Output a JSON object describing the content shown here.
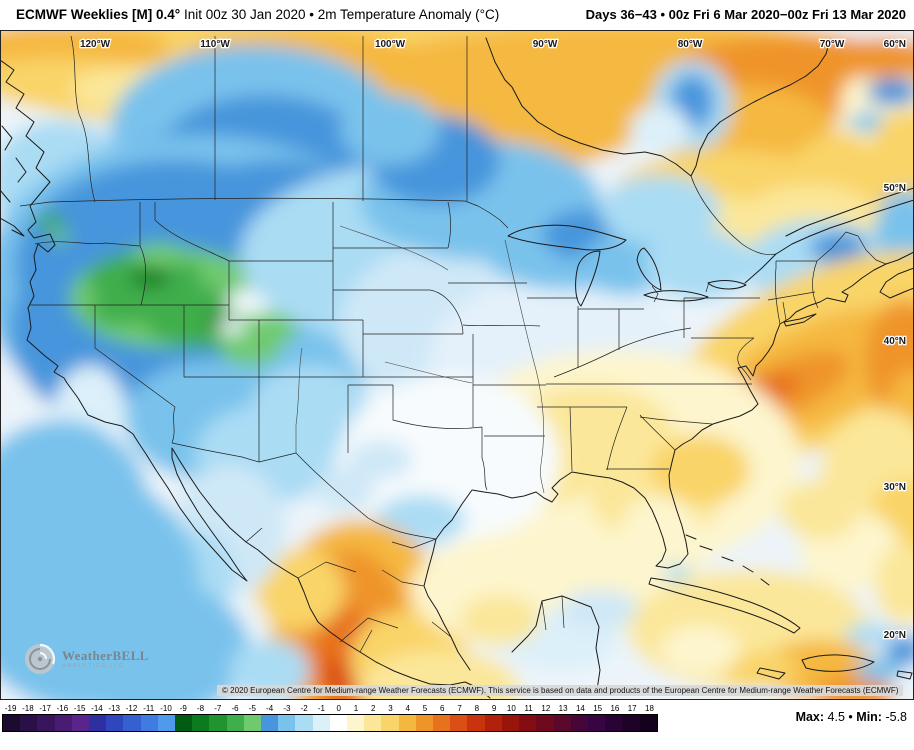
{
  "header": {
    "title_bold": "ECMWF Weeklies [M] 0.4°",
    "title_rest": " Init 00z 30 Jan 2020 • 2m Temperature Anomaly (°C)",
    "date_range": "Days 36−43 • 00z Fri 6 Mar 2020−00z Fri 13 Mar 2020"
  },
  "map": {
    "lon_labels": [
      "120°W",
      "110°W",
      "100°W",
      "90°W",
      "80°W",
      "70°W"
    ],
    "lat_labels": [
      "60°N",
      "50°N",
      "40°N",
      "30°N",
      "20°N"
    ],
    "copyright": "© 2020 European Centre for Medium-range Weather Forecasts (ECMWF). This service is based on data and products of the European Centre for Medium-range Weather Forecasts (ECMWF)"
  },
  "logo": {
    "name": "WeatherBELL",
    "subtext": "Analytics LLC"
  },
  "colorbar": {
    "values": [
      "-19",
      "-18",
      "-17",
      "-16",
      "-15",
      "-14",
      "-13",
      "-12",
      "-11",
      "-10",
      "-9",
      "-8",
      "-7",
      "-6",
      "-5",
      "-4",
      "-3",
      "-2",
      "-1",
      "0",
      "1",
      "2",
      "3",
      "4",
      "5",
      "6",
      "7",
      "8",
      "9",
      "10",
      "11",
      "12",
      "13",
      "14",
      "15",
      "16",
      "17",
      "18"
    ],
    "colors": [
      "#1b0b2e",
      "#2a1045",
      "#39155c",
      "#491c74",
      "#59248c",
      "#2f2fa2",
      "#2f46bc",
      "#3560d2",
      "#3f7ce2",
      "#4f9aec",
      "#005c12",
      "#0c7a1e",
      "#21942f",
      "#3fae4c",
      "#6fca6f",
      "#4795dc",
      "#79c2ec",
      "#aadcf4",
      "#dcf0fa",
      "#ffffff",
      "#fdf5cd",
      "#fbe79a",
      "#f9d468",
      "#f5b83f",
      "#ef9429",
      "#e7711d",
      "#dc4f14",
      "#c9340e",
      "#b0220b",
      "#991409",
      "#830d12",
      "#6e0a1e",
      "#5a082b",
      "#470638",
      "#370444",
      "#2a0336",
      "#1f0228",
      "#15011c"
    ]
  },
  "stats": {
    "max_label": "Max:",
    "max_value": "4.5",
    "sep": "•",
    "min_label": "Min:",
    "min_value": "-5.8"
  }
}
